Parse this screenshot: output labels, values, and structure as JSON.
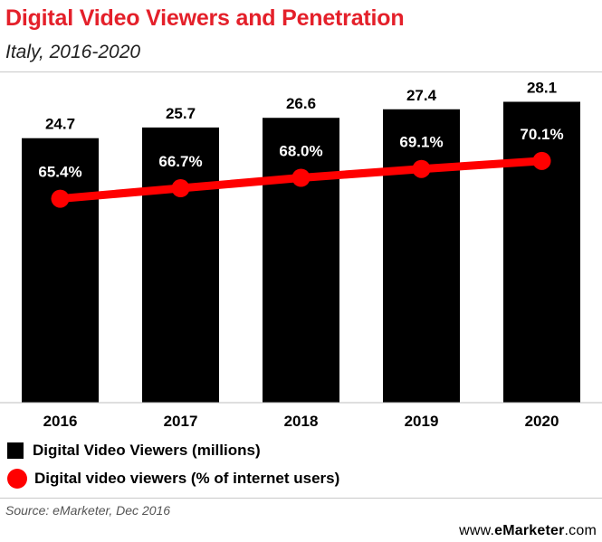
{
  "header": {
    "title": "Digital Video Viewers and Penetration",
    "subtitle": "Italy, 2016-2020"
  },
  "chart_data": {
    "type": "bar",
    "title": "Digital Video Viewers and Penetration",
    "subtitle": "Italy, 2016-2020",
    "categories": [
      "2016",
      "2017",
      "2018",
      "2019",
      "2020"
    ],
    "series": [
      {
        "name": "Digital Video Viewers (millions)",
        "kind": "bar",
        "values": [
          24.7,
          25.7,
          26.6,
          27.4,
          28.1
        ],
        "labels": [
          "24.7",
          "25.7",
          "26.6",
          "27.4",
          "28.1"
        ],
        "color": "#000000"
      },
      {
        "name": "Digital video viewers (% of internet users)",
        "kind": "line",
        "values": [
          65.4,
          66.7,
          68.0,
          69.1,
          70.1
        ],
        "labels": [
          "65.4%",
          "66.7%",
          "68.0%",
          "69.1%",
          "70.1%"
        ],
        "color": "#ff0000"
      }
    ],
    "ylim": [
      0,
      30
    ],
    "y2lim": [
      40,
      80
    ],
    "legend_position": "bottom"
  },
  "footer": {
    "source": "Source: eMarketer, Dec 2016",
    "brand_prefix": "www.",
    "brand_name": "eMarketer",
    "brand_suffix": ".com"
  },
  "colors": {
    "title": "#e4202a",
    "bar": "#000000",
    "line": "#ff0000"
  }
}
